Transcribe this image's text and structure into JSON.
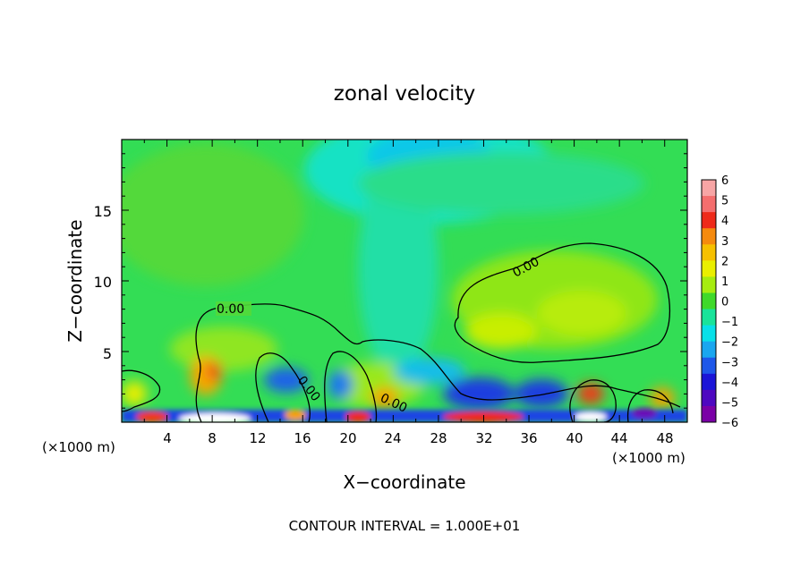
{
  "chart_data": {
    "type": "heatmap",
    "title": "zonal velocity",
    "xlabel": "X−coordinate",
    "ylabel": "Z−coordinate",
    "x_unit": "(×1000 m)",
    "x_unit_right": "(×1000 m)",
    "xlim": [
      0,
      50
    ],
    "ylim": [
      0,
      20
    ],
    "xticks": [
      "4",
      "8",
      "12",
      "16",
      "20",
      "24",
      "28",
      "32",
      "36",
      "40",
      "44",
      "48"
    ],
    "yticks": [
      "5",
      "10",
      "15"
    ],
    "colorbar": {
      "labels": [
        "6",
        "5",
        "4",
        "3",
        "2",
        "1",
        "0",
        "−1",
        "−2",
        "−3",
        "−4",
        "−5",
        "−6"
      ],
      "colors": [
        "#f7a5a5",
        "#f46e6e",
        "#ee2a1a",
        "#f58a0e",
        "#f6c000",
        "#eaef00",
        "#a6ec10",
        "#3fd92a",
        "#19e39a",
        "#08e0e8",
        "#1aa6ef",
        "#1e57e9",
        "#1b14d7",
        "#4e08c0",
        "#7a00a6"
      ]
    },
    "contour_labels": [
      "0.00",
      "0.00",
      "0.00",
      "0.00"
    ],
    "footnote": "CONTOUR INTERVAL = 1.000E+01"
  }
}
